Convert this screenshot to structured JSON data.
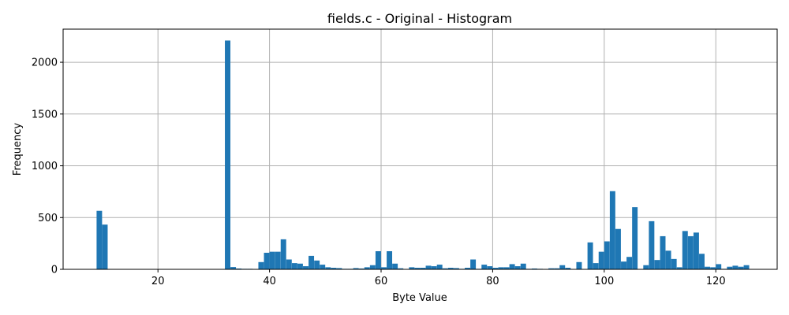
{
  "chart_data": {
    "type": "bar",
    "title": "fields.c - Original - Histogram",
    "xlabel": "Byte Value",
    "ylabel": "Frequency",
    "xlim": [
      3,
      131
    ],
    "ylim": [
      0,
      2320
    ],
    "xticks": [
      20,
      40,
      60,
      80,
      100,
      120
    ],
    "yticks": [
      0,
      500,
      1000,
      1500,
      2000
    ],
    "grid": true,
    "bin_width": 0.984,
    "bar_color": "#1f77b4",
    "bars": [
      {
        "x": 9,
        "y": 565
      },
      {
        "x": 10,
        "y": 432
      },
      {
        "x": 32,
        "y": 2210
      },
      {
        "x": 33,
        "y": 22
      },
      {
        "x": 34,
        "y": 8
      },
      {
        "x": 35,
        "y": 5
      },
      {
        "x": 36,
        "y": 5
      },
      {
        "x": 38,
        "y": 70
      },
      {
        "x": 39,
        "y": 160
      },
      {
        "x": 40,
        "y": 170
      },
      {
        "x": 41,
        "y": 170
      },
      {
        "x": 42,
        "y": 290
      },
      {
        "x": 43,
        "y": 95
      },
      {
        "x": 44,
        "y": 60
      },
      {
        "x": 45,
        "y": 55
      },
      {
        "x": 46,
        "y": 30
      },
      {
        "x": 47,
        "y": 130
      },
      {
        "x": 48,
        "y": 85
      },
      {
        "x": 49,
        "y": 45
      },
      {
        "x": 50,
        "y": 20
      },
      {
        "x": 51,
        "y": 15
      },
      {
        "x": 52,
        "y": 12
      },
      {
        "x": 53,
        "y": 5
      },
      {
        "x": 54,
        "y": 5
      },
      {
        "x": 55,
        "y": 12
      },
      {
        "x": 56,
        "y": 8
      },
      {
        "x": 57,
        "y": 20
      },
      {
        "x": 58,
        "y": 40
      },
      {
        "x": 59,
        "y": 175
      },
      {
        "x": 60,
        "y": 20
      },
      {
        "x": 61,
        "y": 175
      },
      {
        "x": 62,
        "y": 55
      },
      {
        "x": 63,
        "y": 10
      },
      {
        "x": 65,
        "y": 20
      },
      {
        "x": 66,
        "y": 15
      },
      {
        "x": 67,
        "y": 15
      },
      {
        "x": 68,
        "y": 35
      },
      {
        "x": 69,
        "y": 30
      },
      {
        "x": 70,
        "y": 45
      },
      {
        "x": 71,
        "y": 10
      },
      {
        "x": 72,
        "y": 15
      },
      {
        "x": 73,
        "y": 12
      },
      {
        "x": 74,
        "y": 5
      },
      {
        "x": 75,
        "y": 15
      },
      {
        "x": 76,
        "y": 95
      },
      {
        "x": 77,
        "y": 5
      },
      {
        "x": 78,
        "y": 45
      },
      {
        "x": 79,
        "y": 30
      },
      {
        "x": 80,
        "y": 15
      },
      {
        "x": 81,
        "y": 20
      },
      {
        "x": 82,
        "y": 20
      },
      {
        "x": 83,
        "y": 50
      },
      {
        "x": 84,
        "y": 30
      },
      {
        "x": 85,
        "y": 55
      },
      {
        "x": 86,
        "y": 5
      },
      {
        "x": 87,
        "y": 8
      },
      {
        "x": 88,
        "y": 5
      },
      {
        "x": 89,
        "y": 3
      },
      {
        "x": 90,
        "y": 10
      },
      {
        "x": 91,
        "y": 10
      },
      {
        "x": 92,
        "y": 40
      },
      {
        "x": 93,
        "y": 15
      },
      {
        "x": 95,
        "y": 70
      },
      {
        "x": 97,
        "y": 260
      },
      {
        "x": 98,
        "y": 60
      },
      {
        "x": 99,
        "y": 170
      },
      {
        "x": 100,
        "y": 270
      },
      {
        "x": 101,
        "y": 755
      },
      {
        "x": 102,
        "y": 390
      },
      {
        "x": 103,
        "y": 75
      },
      {
        "x": 104,
        "y": 120
      },
      {
        "x": 105,
        "y": 600
      },
      {
        "x": 107,
        "y": 40
      },
      {
        "x": 108,
        "y": 465
      },
      {
        "x": 109,
        "y": 90
      },
      {
        "x": 110,
        "y": 320
      },
      {
        "x": 111,
        "y": 180
      },
      {
        "x": 112,
        "y": 100
      },
      {
        "x": 113,
        "y": 20
      },
      {
        "x": 114,
        "y": 370
      },
      {
        "x": 115,
        "y": 320
      },
      {
        "x": 116,
        "y": 355
      },
      {
        "x": 117,
        "y": 150
      },
      {
        "x": 118,
        "y": 25
      },
      {
        "x": 119,
        "y": 20
      },
      {
        "x": 120,
        "y": 50
      },
      {
        "x": 121,
        "y": 5
      },
      {
        "x": 122,
        "y": 25
      },
      {
        "x": 123,
        "y": 35
      },
      {
        "x": 124,
        "y": 25
      },
      {
        "x": 125,
        "y": 40
      }
    ]
  }
}
